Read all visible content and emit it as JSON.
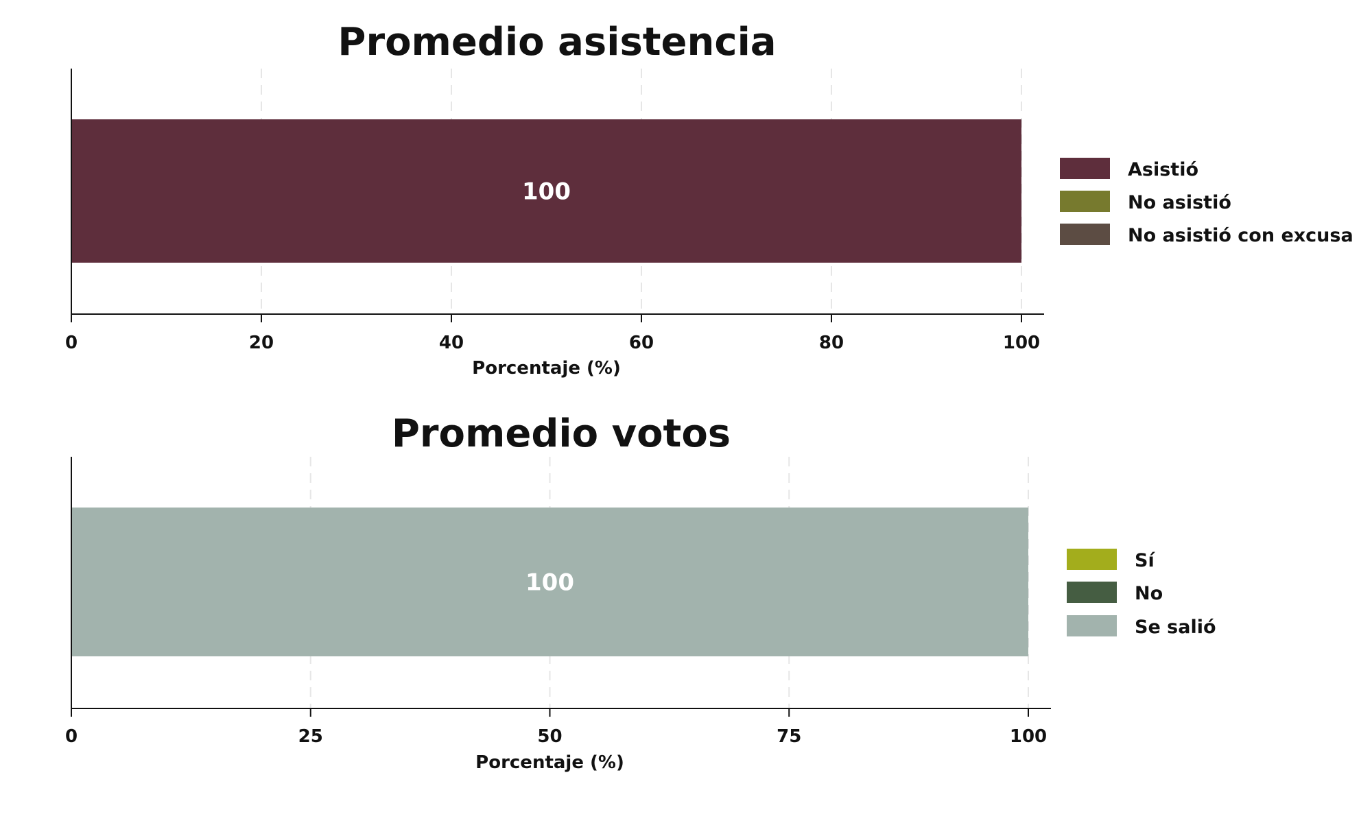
{
  "chart_data": [
    {
      "type": "bar",
      "orientation": "horizontal",
      "stacked": true,
      "title": "Promedio asistencia",
      "xlabel": "Porcentaje (%)",
      "ylabel": "",
      "xlim": [
        0,
        100
      ],
      "xticks": [
        0,
        20,
        40,
        60,
        80,
        100
      ],
      "grid": "vertical dashed",
      "legend_position": "right",
      "categories": [
        ""
      ],
      "series": [
        {
          "name": "Asistió",
          "values": [
            100
          ],
          "color": "#5e2e3c",
          "data_label": "100"
        },
        {
          "name": "No asistió",
          "values": [
            0
          ],
          "color": "#777a2e"
        },
        {
          "name": "No asistió con excusa",
          "values": [
            0
          ],
          "color": "#5c4c43"
        }
      ]
    },
    {
      "type": "bar",
      "orientation": "horizontal",
      "stacked": true,
      "title": "Promedio votos",
      "xlabel": "Porcentaje (%)",
      "ylabel": "",
      "xlim": [
        0,
        100
      ],
      "xticks": [
        0,
        25,
        50,
        75,
        100
      ],
      "grid": "vertical dashed",
      "legend_position": "right",
      "categories": [
        ""
      ],
      "series": [
        {
          "name": "Sí",
          "values": [
            0
          ],
          "color": "#a3ad1c"
        },
        {
          "name": "No",
          "values": [
            0
          ],
          "color": "#455d42"
        },
        {
          "name": "Se salió",
          "values": [
            100
          ],
          "color": "#a2b3ad",
          "data_label": "100"
        }
      ]
    }
  ]
}
